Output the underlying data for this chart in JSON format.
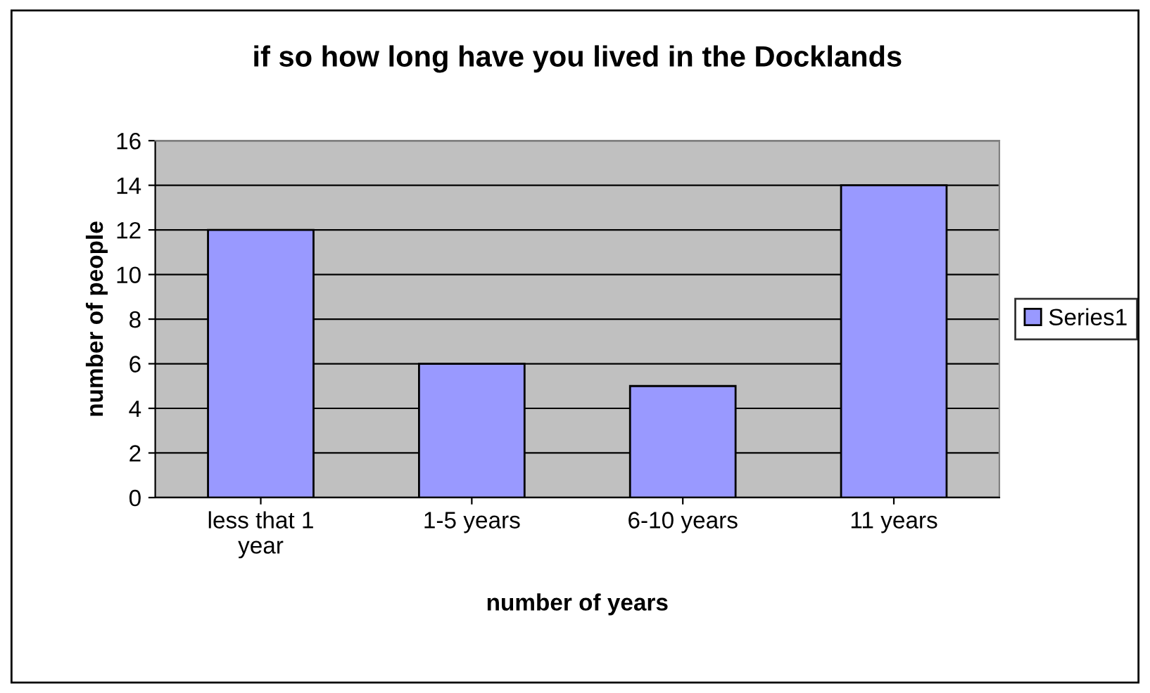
{
  "chart_data": {
    "type": "bar",
    "title": "if so how long have you lived in the Docklands",
    "xlabel": "number of years",
    "ylabel": "number of people",
    "categories": [
      "less that 1\nyear",
      "1-5 years",
      "6-10 years",
      "11 years"
    ],
    "series": [
      {
        "name": "Series1",
        "color": "#9999ff",
        "values": [
          12,
          6,
          5,
          14
        ]
      }
    ],
    "ylim": [
      0,
      16
    ],
    "yticks": [
      0,
      2,
      4,
      6,
      8,
      10,
      12,
      14,
      16
    ],
    "grid": "y",
    "legend": "right"
  }
}
